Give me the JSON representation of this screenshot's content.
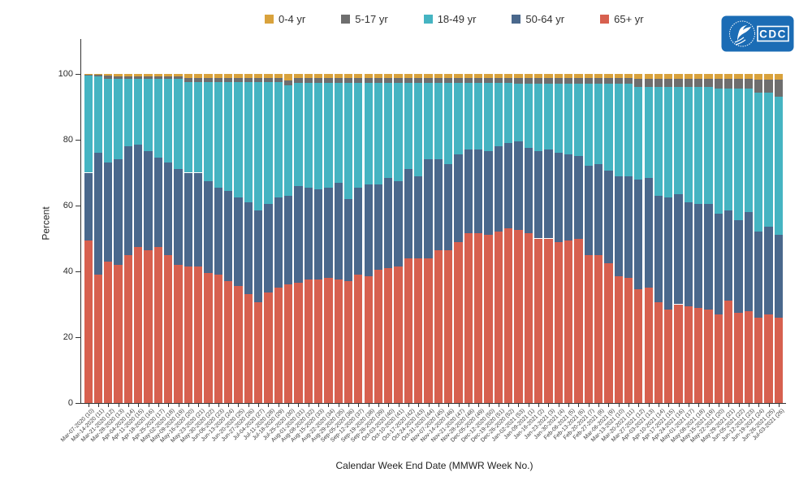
{
  "logo": {
    "text": "CDC",
    "color": "#1B6CB5"
  },
  "chart_data": {
    "type": "bar",
    "stacked": true,
    "unit": "percent",
    "title": "",
    "xlabel": "Calendar Week End Date (MMWR Week No.)",
    "ylabel": "Percent",
    "ylim": [
      0,
      100
    ],
    "yticks": [
      0,
      20,
      40,
      60,
      80,
      100
    ],
    "grid": false,
    "legend_position": "top-center",
    "legend_order": [
      "0-4 yr",
      "5-17 yr",
      "18-49 yr",
      "50-64 yr",
      "65+ yr"
    ],
    "colors": {
      "0-4 yr": "#D9A23C",
      "5-17 yr": "#6E6E6E",
      "18-49 yr": "#45B4C2",
      "50-64 yr": "#4A688C",
      "65+ yr": "#D7604F"
    },
    "categories": [
      "Mar-07-2020 (10)",
      "Mar-14-2020 (11)",
      "Mar-21-2020 (12)",
      "Mar-28-2020 (13)",
      "Apr-04-2020 (14)",
      "Apr-11-2020 (15)",
      "Apr-18-2020 (16)",
      "Apr-25-2020 (17)",
      "May-02-2020 (18)",
      "May-09-2020 (19)",
      "May-16-2020 (20)",
      "May-23-2020 (21)",
      "May-30-2020 (22)",
      "Jun-06-2020 (23)",
      "Jun-13-2020 (24)",
      "Jun-20-2020 (25)",
      "Jun-27-2020 (26)",
      "Jul-04-2020 (27)",
      "Jul-11-2020 (28)",
      "Jul-18-2020 (29)",
      "Jul-25-2020 (30)",
      "Aug-01-2020 (31)",
      "Aug-08-2020 (32)",
      "Aug-15-2020 (33)",
      "Aug-22-2020 (34)",
      "Aug-29-2020 (35)",
      "Sep-05-2020 (36)",
      "Sep-12-2020 (37)",
      "Sep-19-2020 (38)",
      "Sep-26-2020 (39)",
      "Oct-03-2020 (40)",
      "Oct-10-2020 (41)",
      "Oct-17-2020 (42)",
      "Oct-24-2020 (43)",
      "Oct-31-2020 (44)",
      "Nov-07-2020 (45)",
      "Nov-14-2020 (46)",
      "Nov-21-2020 (47)",
      "Nov-28-2020 (48)",
      "Dec-05-2020 (49)",
      "Dec-12-2020 (50)",
      "Dec-19-2020 (51)",
      "Dec-26-2020 (52)",
      "Jan-02-2021 (53)",
      "Jan-09-2021 (1)",
      "Jan-16-2021 (2)",
      "Jan-23-2021 (3)",
      "Jan-30-2021 (4)",
      "Feb-06-2021 (5)",
      "Feb-13-2021 (6)",
      "Feb-20-2021 (7)",
      "Feb-27-2021 (8)",
      "Mar-06-2021 (9)",
      "Mar-13-2021 (10)",
      "Mar-20-2021 (11)",
      "Mar-27-2021 (12)",
      "Apr-03-2021 (13)",
      "Apr-10-2021 (14)",
      "Apr-17-2021 (15)",
      "Apr-24-2021 (16)",
      "May-01-2021 (17)",
      "May-08-2021 (18)",
      "May-15-2021 (19)",
      "May-22-2021 (20)",
      "May-29-2021 (21)",
      "Jun-05-2021 (22)",
      "Jun-12-2021 (23)",
      "Jun-19-2021 (24)",
      "Jun-26-2021 (25)",
      "Jul-03-2021 (26)"
    ],
    "series": [
      {
        "name": "65+ yr",
        "color": "#D7604F",
        "values": [
          49.5,
          39,
          43,
          42,
          45,
          47.5,
          46.5,
          47.5,
          45,
          42,
          41.5,
          41.5,
          39.5,
          39,
          37,
          35.5,
          33,
          30.5,
          33.5,
          35,
          36,
          36.5,
          37.5,
          37.5,
          38,
          37.5,
          37,
          39,
          38.5,
          40.5,
          41,
          41.5,
          44,
          44,
          44,
          46.5,
          46.5,
          49,
          51.5,
          51.5,
          51,
          52,
          53,
          52.5,
          51.5,
          50,
          50,
          49,
          49.5,
          50,
          45,
          45,
          42.5,
          38.5,
          38,
          34.5,
          35,
          30.5,
          28.5,
          30,
          29.5,
          29,
          28.5,
          27,
          31,
          27.5,
          28,
          26,
          27,
          26
        ]
      },
      {
        "name": "50-64 yr",
        "color": "#4A688C",
        "values": [
          20.5,
          37,
          30,
          32,
          33,
          31,
          30,
          27,
          28,
          29,
          28.5,
          28.5,
          28,
          26.5,
          27.5,
          27,
          28,
          28,
          27,
          27.5,
          27,
          29.5,
          28,
          27.5,
          27.5,
          29.5,
          25,
          26.5,
          28,
          26,
          27.5,
          26,
          27,
          25,
          30,
          27.5,
          26,
          26.5,
          25.5,
          25.5,
          25.5,
          26,
          26,
          27,
          26,
          26.5,
          27,
          27,
          26,
          25,
          27,
          27.5,
          28,
          30.5,
          31,
          33.5,
          33.5,
          32.5,
          34,
          33.5,
          31.5,
          31.5,
          32,
          30.5,
          27.5,
          28,
          30,
          26,
          26.5,
          25
        ]
      },
      {
        "name": "18-49 yr",
        "color": "#45B4C2",
        "values": [
          29.5,
          23.3,
          25.6,
          24.4,
          20.4,
          19.9,
          21.9,
          23.9,
          25.4,
          27.4,
          27.6,
          27.6,
          30.1,
          32.1,
          33.1,
          35.1,
          36.6,
          39.1,
          37.1,
          35.1,
          33.5,
          31.2,
          31.7,
          32.2,
          31.7,
          30.2,
          35.2,
          31.7,
          30.7,
          30.7,
          28.8,
          29.8,
          26.3,
          28.3,
          23.3,
          23.3,
          24.8,
          21.8,
          20.3,
          20.3,
          20.8,
          19.3,
          18.3,
          17.5,
          19.5,
          20.5,
          20,
          21,
          21.5,
          22,
          25,
          24.5,
          26.5,
          28,
          28,
          28,
          27.5,
          33,
          33.5,
          32.5,
          35,
          35.5,
          35.5,
          38,
          37,
          40,
          37.5,
          42.2,
          40.7,
          42.2
        ]
      },
      {
        "name": "5-17 yr",
        "color": "#6E6E6E",
        "values": [
          0.3,
          0.5,
          1,
          0.8,
          0.8,
          0.8,
          0.8,
          0.8,
          0.8,
          0.8,
          1.2,
          1.2,
          1.2,
          1.2,
          1.2,
          1.2,
          1.2,
          1.2,
          1.2,
          1.2,
          1.5,
          1.5,
          1.5,
          1.5,
          1.5,
          1.5,
          1.5,
          1.5,
          1.5,
          1.5,
          1.5,
          1.5,
          1.5,
          1.5,
          1.5,
          1.5,
          1.5,
          1.5,
          1.5,
          1.5,
          1.5,
          1.5,
          1.5,
          1.8,
          1.8,
          1.8,
          1.8,
          1.8,
          1.8,
          1.8,
          1.8,
          1.8,
          1.8,
          1.8,
          1.8,
          2.5,
          2.5,
          2.5,
          2.5,
          2.5,
          2.5,
          2.5,
          2.5,
          3,
          3,
          3,
          3,
          4,
          4,
          5
        ]
      },
      {
        "name": "0-4 yr",
        "color": "#D9A23C",
        "values": [
          0.2,
          0.2,
          0.4,
          0.8,
          0.8,
          0.8,
          0.8,
          0.8,
          0.8,
          0.8,
          1.2,
          1.2,
          1.2,
          1.2,
          1.2,
          1.2,
          1.2,
          1.2,
          1.2,
          1.2,
          2,
          1.3,
          1.3,
          1.3,
          1.3,
          1.3,
          1.3,
          1.3,
          1.3,
          1.3,
          1.2,
          1.2,
          1.2,
          1.2,
          1.2,
          1.2,
          1.2,
          1.2,
          1.2,
          1.2,
          1.2,
          1.2,
          1.2,
          1.2,
          1.2,
          1.2,
          1.2,
          1.2,
          1.2,
          1.2,
          1.2,
          1.2,
          1.2,
          1.2,
          1.2,
          1.5,
          1.5,
          1.5,
          1.5,
          1.5,
          1.5,
          1.5,
          1.5,
          1.5,
          1.5,
          1.5,
          1.5,
          1.8,
          1.8,
          1.8
        ]
      }
    ]
  }
}
